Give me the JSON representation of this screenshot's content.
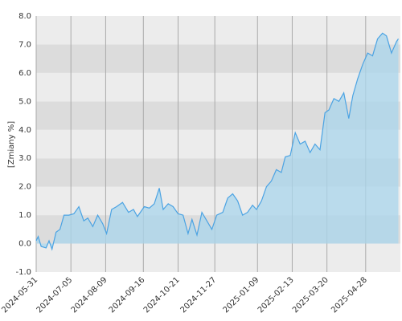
{
  "chart_data": {
    "type": "area",
    "y_label": "[Zmiany %]",
    "x": [
      "2024-05-31",
      "2024-06-02",
      "2024-06-05",
      "2024-06-10",
      "2024-06-13",
      "2024-06-16",
      "2024-06-20",
      "2024-06-24",
      "2024-06-28",
      "2024-07-03",
      "2024-07-08",
      "2024-07-13",
      "2024-07-18",
      "2024-07-22",
      "2024-07-27",
      "2024-08-01",
      "2024-08-06",
      "2024-08-10",
      "2024-08-15",
      "2024-08-20",
      "2024-08-26",
      "2024-09-01",
      "2024-09-06",
      "2024-09-10",
      "2024-09-17",
      "2024-09-22",
      "2024-09-27",
      "2024-10-02",
      "2024-10-06",
      "2024-10-11",
      "2024-10-16",
      "2024-10-21",
      "2024-10-26",
      "2024-10-31",
      "2024-11-04",
      "2024-11-09",
      "2024-11-14",
      "2024-11-19",
      "2024-11-24",
      "2024-11-29",
      "2024-12-05",
      "2024-12-10",
      "2024-12-15",
      "2024-12-20",
      "2024-12-25",
      "2024-12-30",
      "2025-01-04",
      "2025-01-08",
      "2025-01-13",
      "2025-01-18",
      "2025-01-23",
      "2025-01-28",
      "2025-02-02",
      "2025-02-06",
      "2025-02-11",
      "2025-02-16",
      "2025-02-21",
      "2025-02-26",
      "2025-03-03",
      "2025-03-08",
      "2025-03-13",
      "2025-03-18",
      "2025-03-22",
      "2025-03-27",
      "2025-04-01",
      "2025-04-06",
      "2025-04-11",
      "2025-04-15",
      "2025-04-20",
      "2025-04-25",
      "2025-04-30",
      "2025-05-05",
      "2025-05-10",
      "2025-05-15",
      "2025-05-19",
      "2025-05-24",
      "2025-05-29",
      "2025-05-31"
    ],
    "series": [
      {
        "color": "#4ba3e3",
        "fill": "#a9d6ec",
        "values": [
          0.1,
          0.25,
          -0.1,
          -0.15,
          0.1,
          -0.2,
          0.4,
          0.5,
          1.0,
          1.0,
          1.05,
          1.3,
          0.8,
          0.9,
          0.6,
          1.0,
          0.7,
          0.35,
          1.2,
          1.3,
          1.45,
          1.1,
          1.2,
          0.95,
          1.3,
          1.25,
          1.4,
          1.95,
          1.2,
          1.4,
          1.3,
          1.05,
          1.0,
          0.35,
          0.85,
          0.3,
          1.1,
          0.8,
          0.5,
          1.0,
          1.1,
          1.6,
          1.75,
          1.5,
          1.0,
          1.1,
          1.35,
          1.2,
          1.5,
          2.0,
          2.2,
          2.6,
          2.5,
          3.05,
          3.1,
          3.9,
          3.5,
          3.6,
          3.2,
          3.5,
          3.3,
          4.6,
          4.7,
          5.1,
          5.0,
          5.3,
          4.4,
          5.2,
          5.8,
          6.3,
          6.7,
          6.6,
          7.2,
          7.4,
          7.3,
          6.7,
          7.1,
          7.2
        ]
      }
    ],
    "xlim": [
      "2024-05-31",
      "2025-06-02"
    ],
    "xticks": [
      "2024-05-31",
      "2024-07-05",
      "2024-08-09",
      "2024-09-16",
      "2024-10-21",
      "2024-11-27",
      "2025-01-09",
      "2025-02-13",
      "2025-03-20",
      "2025-04-28"
    ],
    "ylim": [
      -1,
      8
    ],
    "yticks": [
      {
        "value": -1,
        "label": "-1.0"
      },
      {
        "value": 0,
        "label": "0.0"
      },
      {
        "value": 1,
        "label": "1.0"
      },
      {
        "value": 2,
        "label": "2.0"
      },
      {
        "value": 3,
        "label": "3.0"
      },
      {
        "value": 4,
        "label": "4.0"
      },
      {
        "value": 5,
        "label": "5.0"
      },
      {
        "value": 6,
        "label": "6.0"
      },
      {
        "value": 7,
        "label": "7.0"
      },
      {
        "value": 8,
        "label": "8.0"
      }
    ],
    "grid": true
  }
}
